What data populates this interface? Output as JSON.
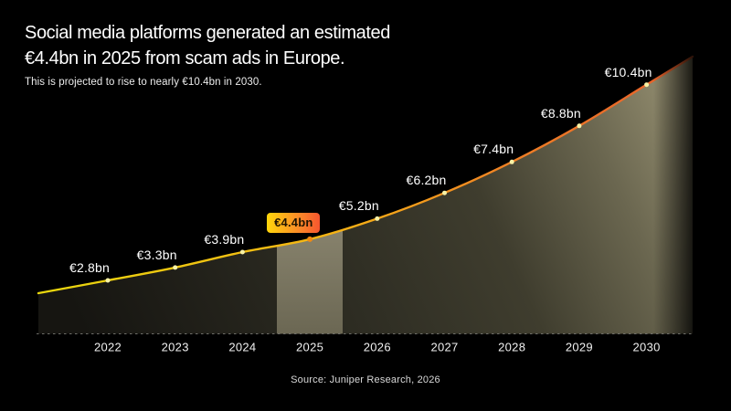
{
  "header": {
    "title_lines": [
      "Social media platforms generated an estimated",
      "€4.4bn in 2025 from scam ads in Europe."
    ],
    "subtitle": "This is projected to rise to nearly €10.4bn in 2030."
  },
  "source": "Source: Juniper Research, 2026",
  "chart_data": {
    "type": "area",
    "title": "Social media platforms generated an estimated €4.4bn in 2025 from scam ads in Europe.",
    "subtitle": "This is projected to rise to nearly €10.4bn in 2030.",
    "x": [
      2022,
      2023,
      2024,
      2025,
      2026,
      2027,
      2028,
      2029,
      2030
    ],
    "values": [
      2.8,
      3.3,
      3.9,
      4.4,
      5.2,
      6.2,
      7.4,
      8.8,
      10.4
    ],
    "point_labels": [
      "€2.8bn",
      "€3.3bn",
      "€3.9bn",
      "€4.4bn",
      "€5.2bn",
      "€6.2bn",
      "€7.4bn",
      "€8.8bn",
      "€10.4bn"
    ],
    "x_tick_labels": [
      "2022",
      "2023",
      "2024",
      "2025",
      "2026",
      "2027",
      "2028",
      "2029",
      "2030"
    ],
    "highlight": {
      "year": 2025,
      "label": "€4.4bn"
    },
    "unit": "€bn",
    "grid": false,
    "legend": false,
    "ylim": [
      0,
      11
    ],
    "colors": {
      "background": "#000000",
      "point": "#f8f2a6",
      "highlight_point": "#f18a12",
      "baseline_dash": "#6f6f6a",
      "line_gradient": [
        "#e8d70e",
        "#f6b414",
        "#f08125",
        "#e55c2b"
      ],
      "area_gradient": [
        "#161511",
        "#2e2d23",
        "#3f3d2e",
        "#6b6750",
        "#948e70"
      ],
      "band_gradient": [
        "#8b8670",
        "#6b6753"
      ],
      "badge_gradient": [
        "#ffd60b",
        "#fb8b28",
        "#f7562f"
      ]
    }
  }
}
